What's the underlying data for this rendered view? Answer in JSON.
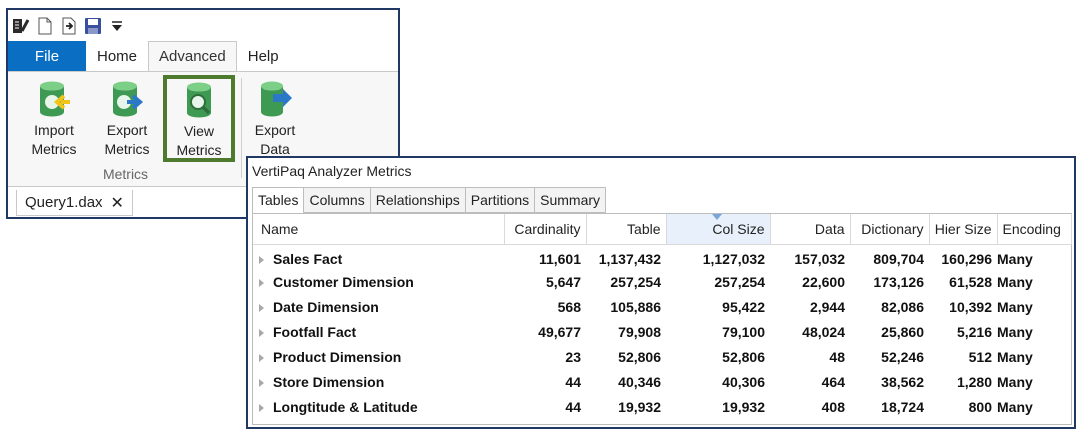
{
  "ribbon": {
    "tabs": [
      "File",
      "Home",
      "Advanced",
      "Help"
    ],
    "active_tab": "Advanced",
    "buttons": {
      "import_metrics": [
        "Import",
        "Metrics"
      ],
      "export_metrics": [
        "Export",
        "Metrics"
      ],
      "view_metrics": [
        "View",
        "Metrics"
      ],
      "export_data": [
        "Export",
        "Data"
      ]
    },
    "group_label": "Metrics",
    "highlight_color": "#4e7a2e"
  },
  "document_tab": {
    "label": "Query1.dax",
    "close": "✕"
  },
  "metrics_window": {
    "title": "VertiPaq Analyzer Metrics",
    "tabs": [
      "Tables",
      "Columns",
      "Relationships",
      "Partitions",
      "Summary"
    ],
    "active_tab": "Tables",
    "sorted_column": "Col Size",
    "columns": [
      "Name",
      "Cardinality",
      "Table",
      "Col Size",
      "Data",
      "Dictionary",
      "Hier Size",
      "Encoding"
    ],
    "rows": [
      [
        "Sales Fact",
        "11,601",
        "1,137,432",
        "1,127,032",
        "157,032",
        "809,704",
        "160,296",
        "Many"
      ],
      [
        "Customer Dimension",
        "5,647",
        "257,254",
        "257,254",
        "22,600",
        "173,126",
        "61,528",
        "Many"
      ],
      [
        "Date Dimension",
        "568",
        "105,886",
        "95,422",
        "2,944",
        "82,086",
        "10,392",
        "Many"
      ],
      [
        "Footfall Fact",
        "49,677",
        "79,908",
        "79,100",
        "48,024",
        "25,860",
        "5,216",
        "Many"
      ],
      [
        "Product Dimension",
        "23",
        "52,806",
        "52,806",
        "48",
        "52,246",
        "512",
        "Many"
      ],
      [
        "Store Dimension",
        "44",
        "40,346",
        "40,306",
        "464",
        "38,562",
        "1,280",
        "Many"
      ],
      [
        "Longtitude & Latitude",
        "44",
        "19,932",
        "19,932",
        "408",
        "18,724",
        "800",
        "Many"
      ]
    ]
  }
}
